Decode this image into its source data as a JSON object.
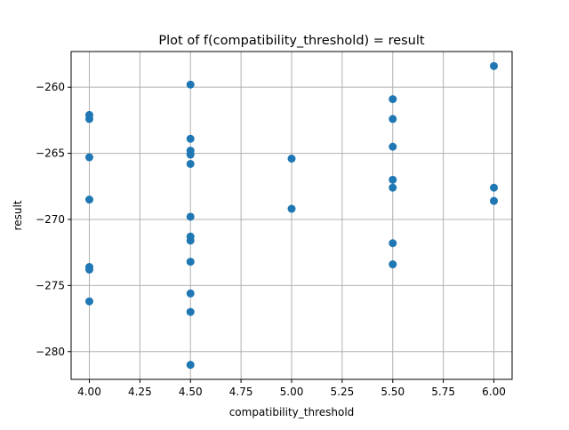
{
  "chart_data": {
    "type": "scatter",
    "title": "Plot of f(compatibility_threshold) = result",
    "xlabel": "compatibility_threshold",
    "ylabel": "result",
    "xlim": [
      3.91,
      6.09
    ],
    "ylim": [
      -282.1,
      -257.3
    ],
    "xticks": [
      4.0,
      4.25,
      4.5,
      4.75,
      5.0,
      5.25,
      5.5,
      5.75,
      6.0
    ],
    "xtick_labels": [
      "4.00",
      "4.25",
      "4.50",
      "4.75",
      "5.00",
      "5.25",
      "5.50",
      "5.75",
      "6.00"
    ],
    "yticks": [
      -280,
      -275,
      -270,
      -265,
      -260
    ],
    "ytick_labels": [
      "−280",
      "−275",
      "−270",
      "−265",
      "−260"
    ],
    "grid": true,
    "marker_color": "#1f77b4",
    "points": [
      {
        "x": 4.0,
        "y": -262.1
      },
      {
        "x": 4.0,
        "y": -262.4
      },
      {
        "x": 4.0,
        "y": -265.3
      },
      {
        "x": 4.0,
        "y": -268.5
      },
      {
        "x": 4.0,
        "y": -273.6
      },
      {
        "x": 4.0,
        "y": -273.8
      },
      {
        "x": 4.0,
        "y": -276.2
      },
      {
        "x": 4.5,
        "y": -259.8
      },
      {
        "x": 4.5,
        "y": -263.9
      },
      {
        "x": 4.5,
        "y": -264.8
      },
      {
        "x": 4.5,
        "y": -265.1
      },
      {
        "x": 4.5,
        "y": -265.8
      },
      {
        "x": 4.5,
        "y": -269.8
      },
      {
        "x": 4.5,
        "y": -271.3
      },
      {
        "x": 4.5,
        "y": -271.6
      },
      {
        "x": 4.5,
        "y": -273.2
      },
      {
        "x": 4.5,
        "y": -275.6
      },
      {
        "x": 4.5,
        "y": -277.0
      },
      {
        "x": 4.5,
        "y": -281.0
      },
      {
        "x": 5.0,
        "y": -265.4
      },
      {
        "x": 5.0,
        "y": -269.2
      },
      {
        "x": 5.5,
        "y": -260.9
      },
      {
        "x": 5.5,
        "y": -262.4
      },
      {
        "x": 5.5,
        "y": -264.5
      },
      {
        "x": 5.5,
        "y": -267.0
      },
      {
        "x": 5.5,
        "y": -267.6
      },
      {
        "x": 5.5,
        "y": -271.8
      },
      {
        "x": 5.5,
        "y": -273.4
      },
      {
        "x": 6.0,
        "y": -258.4
      },
      {
        "x": 6.0,
        "y": -267.6
      },
      {
        "x": 6.0,
        "y": -268.6
      }
    ]
  }
}
